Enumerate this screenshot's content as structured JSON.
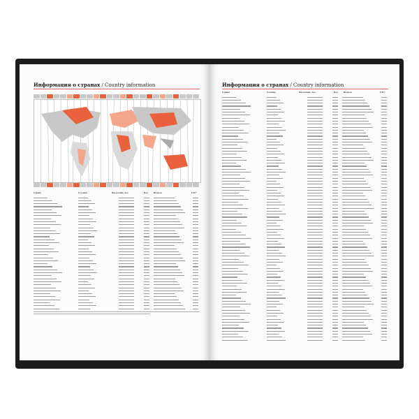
{
  "left_page": {
    "title_ru": "Информация о странах",
    "title_sep": " / ",
    "title_en": "Country information",
    "columns": [
      "Страна",
      "Столица",
      "Население, чел.",
      "Код",
      "Валюта",
      "UTC*"
    ]
  },
  "right_page": {
    "title_ru": "Информация о странах",
    "title_sep": " / ",
    "title_en": "Country information",
    "columns": [
      "Страна",
      "Столица",
      "Население, чел.",
      "Код",
      "Валюта",
      "UTC*"
    ]
  },
  "colors": {
    "accent": "#e8603c",
    "light_accent": "#f4a58a",
    "gray": "#c8c8c8",
    "cover": "#1c1c1c"
  }
}
